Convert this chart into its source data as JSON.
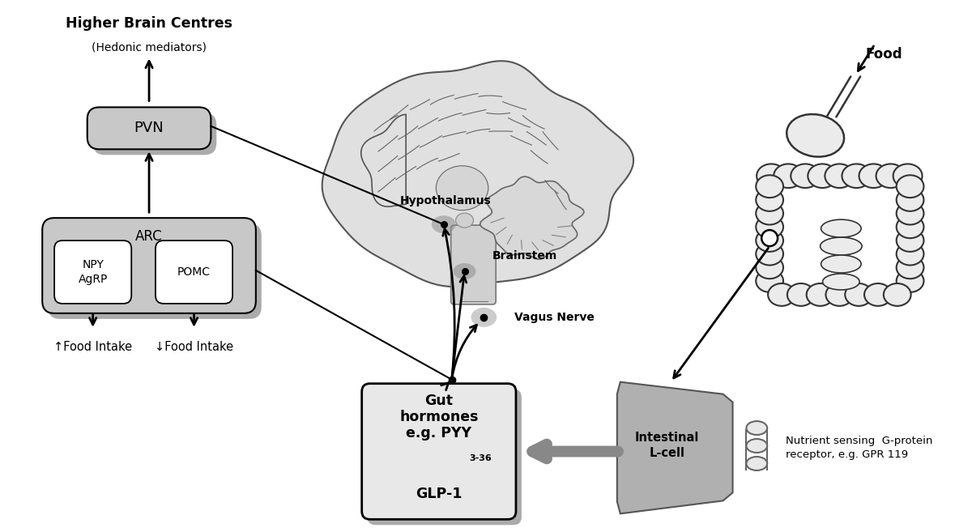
{
  "bg_color": "#ffffff",
  "higher_brain_text": "Higher Brain Centres",
  "hedonic_text": "(Hedonic mediators)",
  "pvn_text": "PVN",
  "arc_text": "ARC",
  "npy_text": "NPY\nAgRP",
  "pomc_text": "POMC",
  "food_intake_up": "↑Food Intake",
  "food_intake_down": "↓Food Intake",
  "pyy_subscript": "3-36",
  "glp_text": "GLP-1",
  "intestinal_lcell_text": "Intestinal\nL-cell",
  "nutrient_text": "Nutrient sensing  G-protein\nreceptor, e.g. GPR 119",
  "hypothalamus_text": "Hypothalamus",
  "brainstem_text": "Brainstem",
  "vagus_text": "Vagus Nerve",
  "food_text": "Food",
  "box_shadow": "#999999",
  "box_gray": "#c8c8c8",
  "box_white": "#ffffff",
  "lcell_gray": "#aaaaaa",
  "brain_fill": "#e0e0e0",
  "brain_edge": "#555555",
  "gut_fill": "#e8e8e8",
  "gut_edge": "#333333"
}
